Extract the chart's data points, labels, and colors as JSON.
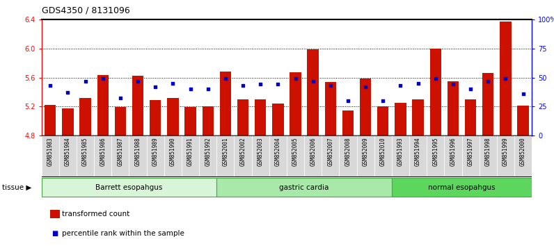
{
  "title": "GDS4350 / 8131096",
  "samples": [
    "GSM851983",
    "GSM851984",
    "GSM851985",
    "GSM851986",
    "GSM851987",
    "GSM851988",
    "GSM851989",
    "GSM851990",
    "GSM851991",
    "GSM851992",
    "GSM852001",
    "GSM852002",
    "GSM852003",
    "GSM852004",
    "GSM852005",
    "GSM852006",
    "GSM852007",
    "GSM852008",
    "GSM852009",
    "GSM852010",
    "GSM851993",
    "GSM851994",
    "GSM851995",
    "GSM851996",
    "GSM851997",
    "GSM851998",
    "GSM851999",
    "GSM852000"
  ],
  "red_values": [
    5.22,
    5.17,
    5.32,
    5.63,
    5.19,
    5.62,
    5.29,
    5.32,
    5.19,
    5.2,
    5.68,
    5.3,
    5.3,
    5.24,
    5.67,
    5.99,
    5.54,
    5.14,
    5.59,
    5.2,
    5.25,
    5.3,
    6.0,
    5.55,
    5.3,
    5.66,
    6.37,
    5.21
  ],
  "blue_percentiles": [
    43,
    37,
    47,
    49,
    32,
    47,
    42,
    45,
    40,
    40,
    49,
    43,
    44,
    44,
    49,
    47,
    43,
    30,
    42,
    30,
    43,
    45,
    49,
    44,
    40,
    47,
    49,
    36
  ],
  "groups": [
    {
      "label": "Barrett esopahgus",
      "start": 0,
      "end": 10,
      "color": "#d8f5d8"
    },
    {
      "label": "gastric cardia",
      "start": 10,
      "end": 20,
      "color": "#a8e8a8"
    },
    {
      "label": "normal esopahgus",
      "start": 20,
      "end": 28,
      "color": "#5cd65c"
    }
  ],
  "ylim_left": [
    4.8,
    6.4
  ],
  "ylim_right": [
    0,
    100
  ],
  "yticks_left": [
    4.8,
    5.2,
    5.6,
    6.0,
    6.4
  ],
  "yticks_right": [
    0,
    25,
    50,
    75,
    100
  ],
  "ytick_labels_right": [
    "0",
    "25",
    "50",
    "75",
    "100%"
  ],
  "grid_values": [
    5.2,
    5.6,
    6.0
  ],
  "bar_color": "#cc1100",
  "blue_color": "#0000cc",
  "bar_width": 0.65,
  "base_value": 4.8,
  "tissue_label": "tissue ▶",
  "legend_red": "transformed count",
  "legend_blue": "percentile rank within the sample"
}
